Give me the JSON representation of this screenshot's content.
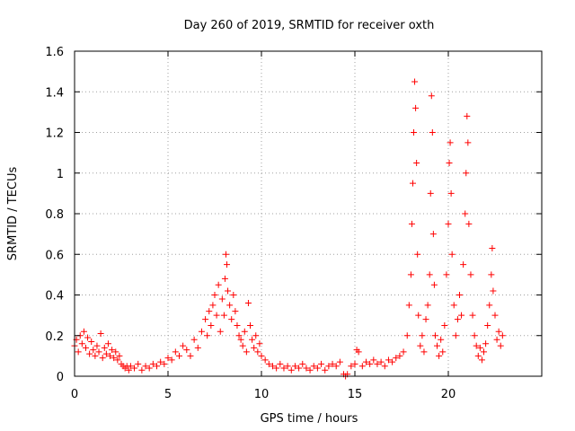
{
  "chart_data": {
    "type": "scatter",
    "title": "Day 260 of 2019, SRMTID for receiver oxth",
    "xlabel": "GPS time / hours",
    "ylabel": "SRMTID / TECUs",
    "xlim": [
      0,
      25
    ],
    "ylim": [
      0,
      1.6
    ],
    "xticks": [
      0,
      5,
      10,
      15,
      20
    ],
    "xtick_labels": [
      "0",
      "5",
      "10",
      "15",
      "20"
    ],
    "yticks": [
      0,
      0.2,
      0.4,
      0.6,
      0.8,
      1,
      1.2,
      1.4,
      1.6
    ],
    "ytick_labels": [
      "0",
      "0.2",
      "0.4",
      "0.6",
      "0.8",
      "1",
      "1.2",
      "1.4",
      "1.6"
    ],
    "grid": true,
    "marker": "+",
    "marker_color": "#ff0000",
    "series": [
      {
        "name": "SRMTID",
        "points": [
          [
            0.0,
            0.15
          ],
          [
            0.1,
            0.18
          ],
          [
            0.2,
            0.12
          ],
          [
            0.3,
            0.2
          ],
          [
            0.4,
            0.16
          ],
          [
            0.5,
            0.22
          ],
          [
            0.6,
            0.14
          ],
          [
            0.7,
            0.19
          ],
          [
            0.8,
            0.11
          ],
          [
            0.9,
            0.17
          ],
          [
            1.0,
            0.13
          ],
          [
            1.1,
            0.1
          ],
          [
            1.2,
            0.15
          ],
          [
            1.3,
            0.12
          ],
          [
            1.4,
            0.21
          ],
          [
            1.5,
            0.09
          ],
          [
            1.6,
            0.14
          ],
          [
            1.7,
            0.11
          ],
          [
            1.8,
            0.16
          ],
          [
            1.9,
            0.1
          ],
          [
            2.0,
            0.13
          ],
          [
            2.1,
            0.09
          ],
          [
            2.2,
            0.12
          ],
          [
            2.3,
            0.08
          ],
          [
            2.4,
            0.1
          ],
          [
            2.5,
            0.06
          ],
          [
            2.6,
            0.05
          ],
          [
            2.7,
            0.04
          ],
          [
            2.8,
            0.05
          ],
          [
            2.9,
            0.03
          ],
          [
            3.0,
            0.05
          ],
          [
            3.2,
            0.04
          ],
          [
            3.4,
            0.06
          ],
          [
            3.6,
            0.03
          ],
          [
            3.8,
            0.05
          ],
          [
            4.0,
            0.04
          ],
          [
            4.2,
            0.06
          ],
          [
            4.4,
            0.05
          ],
          [
            4.6,
            0.07
          ],
          [
            4.8,
            0.06
          ],
          [
            5.0,
            0.09
          ],
          [
            5.2,
            0.08
          ],
          [
            5.4,
            0.12
          ],
          [
            5.6,
            0.1
          ],
          [
            5.8,
            0.15
          ],
          [
            6.0,
            0.13
          ],
          [
            6.2,
            0.1
          ],
          [
            6.4,
            0.18
          ],
          [
            6.6,
            0.14
          ],
          [
            6.8,
            0.22
          ],
          [
            7.0,
            0.28
          ],
          [
            7.1,
            0.2
          ],
          [
            7.2,
            0.32
          ],
          [
            7.3,
            0.25
          ],
          [
            7.4,
            0.35
          ],
          [
            7.5,
            0.4
          ],
          [
            7.6,
            0.3
          ],
          [
            7.7,
            0.45
          ],
          [
            7.8,
            0.22
          ],
          [
            7.9,
            0.38
          ],
          [
            8.0,
            0.3
          ],
          [
            8.05,
            0.48
          ],
          [
            8.1,
            0.6
          ],
          [
            8.15,
            0.55
          ],
          [
            8.2,
            0.42
          ],
          [
            8.3,
            0.35
          ],
          [
            8.4,
            0.28
          ],
          [
            8.5,
            0.4
          ],
          [
            8.6,
            0.32
          ],
          [
            8.7,
            0.25
          ],
          [
            8.8,
            0.2
          ],
          [
            8.9,
            0.18
          ],
          [
            9.0,
            0.15
          ],
          [
            9.1,
            0.22
          ],
          [
            9.2,
            0.12
          ],
          [
            9.3,
            0.36
          ],
          [
            9.4,
            0.25
          ],
          [
            9.5,
            0.18
          ],
          [
            9.6,
            0.14
          ],
          [
            9.7,
            0.2
          ],
          [
            9.8,
            0.12
          ],
          [
            9.9,
            0.16
          ],
          [
            10.0,
            0.1
          ],
          [
            10.2,
            0.08
          ],
          [
            10.4,
            0.06
          ],
          [
            10.6,
            0.05
          ],
          [
            10.8,
            0.04
          ],
          [
            11.0,
            0.06
          ],
          [
            11.2,
            0.04
          ],
          [
            11.4,
            0.05
          ],
          [
            11.6,
            0.03
          ],
          [
            11.8,
            0.05
          ],
          [
            12.0,
            0.04
          ],
          [
            12.2,
            0.06
          ],
          [
            12.4,
            0.04
          ],
          [
            12.6,
            0.03
          ],
          [
            12.8,
            0.05
          ],
          [
            13.0,
            0.04
          ],
          [
            13.2,
            0.06
          ],
          [
            13.4,
            0.03
          ],
          [
            13.6,
            0.05
          ],
          [
            13.8,
            0.06
          ],
          [
            14.0,
            0.05
          ],
          [
            14.2,
            0.07
          ],
          [
            14.4,
            0.01
          ],
          [
            14.5,
            0.0
          ],
          [
            14.6,
            0.01
          ],
          [
            14.8,
            0.05
          ],
          [
            15.0,
            0.06
          ],
          [
            15.1,
            0.13
          ],
          [
            15.2,
            0.12
          ],
          [
            15.4,
            0.05
          ],
          [
            15.6,
            0.07
          ],
          [
            15.8,
            0.06
          ],
          [
            16.0,
            0.08
          ],
          [
            16.2,
            0.06
          ],
          [
            16.4,
            0.07
          ],
          [
            16.6,
            0.05
          ],
          [
            16.8,
            0.08
          ],
          [
            17.0,
            0.07
          ],
          [
            17.2,
            0.09
          ],
          [
            17.4,
            0.1
          ],
          [
            17.6,
            0.12
          ],
          [
            17.8,
            0.2
          ],
          [
            17.9,
            0.35
          ],
          [
            18.0,
            0.5
          ],
          [
            18.05,
            0.75
          ],
          [
            18.1,
            0.95
          ],
          [
            18.15,
            1.2
          ],
          [
            18.2,
            1.45
          ],
          [
            18.25,
            1.32
          ],
          [
            18.3,
            1.05
          ],
          [
            18.35,
            0.6
          ],
          [
            18.4,
            0.3
          ],
          [
            18.5,
            0.15
          ],
          [
            18.6,
            0.2
          ],
          [
            18.7,
            0.12
          ],
          [
            18.8,
            0.28
          ],
          [
            18.9,
            0.35
          ],
          [
            19.0,
            0.5
          ],
          [
            19.05,
            0.9
          ],
          [
            19.1,
            1.38
          ],
          [
            19.15,
            1.2
          ],
          [
            19.2,
            0.7
          ],
          [
            19.25,
            0.45
          ],
          [
            19.3,
            0.2
          ],
          [
            19.4,
            0.15
          ],
          [
            19.5,
            0.1
          ],
          [
            19.6,
            0.18
          ],
          [
            19.7,
            0.12
          ],
          [
            19.8,
            0.25
          ],
          [
            19.9,
            0.5
          ],
          [
            20.0,
            0.75
          ],
          [
            20.05,
            1.05
          ],
          [
            20.1,
            1.15
          ],
          [
            20.15,
            0.9
          ],
          [
            20.2,
            0.6
          ],
          [
            20.3,
            0.35
          ],
          [
            20.4,
            0.2
          ],
          [
            20.5,
            0.28
          ],
          [
            20.6,
            0.4
          ],
          [
            20.7,
            0.3
          ],
          [
            20.8,
            0.55
          ],
          [
            20.9,
            0.8
          ],
          [
            20.95,
            1.0
          ],
          [
            21.0,
            1.28
          ],
          [
            21.05,
            1.15
          ],
          [
            21.1,
            0.75
          ],
          [
            21.2,
            0.5
          ],
          [
            21.3,
            0.3
          ],
          [
            21.4,
            0.2
          ],
          [
            21.5,
            0.15
          ],
          [
            21.6,
            0.1
          ],
          [
            21.7,
            0.14
          ],
          [
            21.8,
            0.08
          ],
          [
            21.9,
            0.12
          ],
          [
            22.0,
            0.16
          ],
          [
            22.1,
            0.25
          ],
          [
            22.2,
            0.35
          ],
          [
            22.3,
            0.5
          ],
          [
            22.35,
            0.63
          ],
          [
            22.4,
            0.42
          ],
          [
            22.5,
            0.3
          ],
          [
            22.6,
            0.18
          ],
          [
            22.7,
            0.22
          ],
          [
            22.8,
            0.15
          ],
          [
            22.9,
            0.2
          ]
        ]
      }
    ]
  }
}
